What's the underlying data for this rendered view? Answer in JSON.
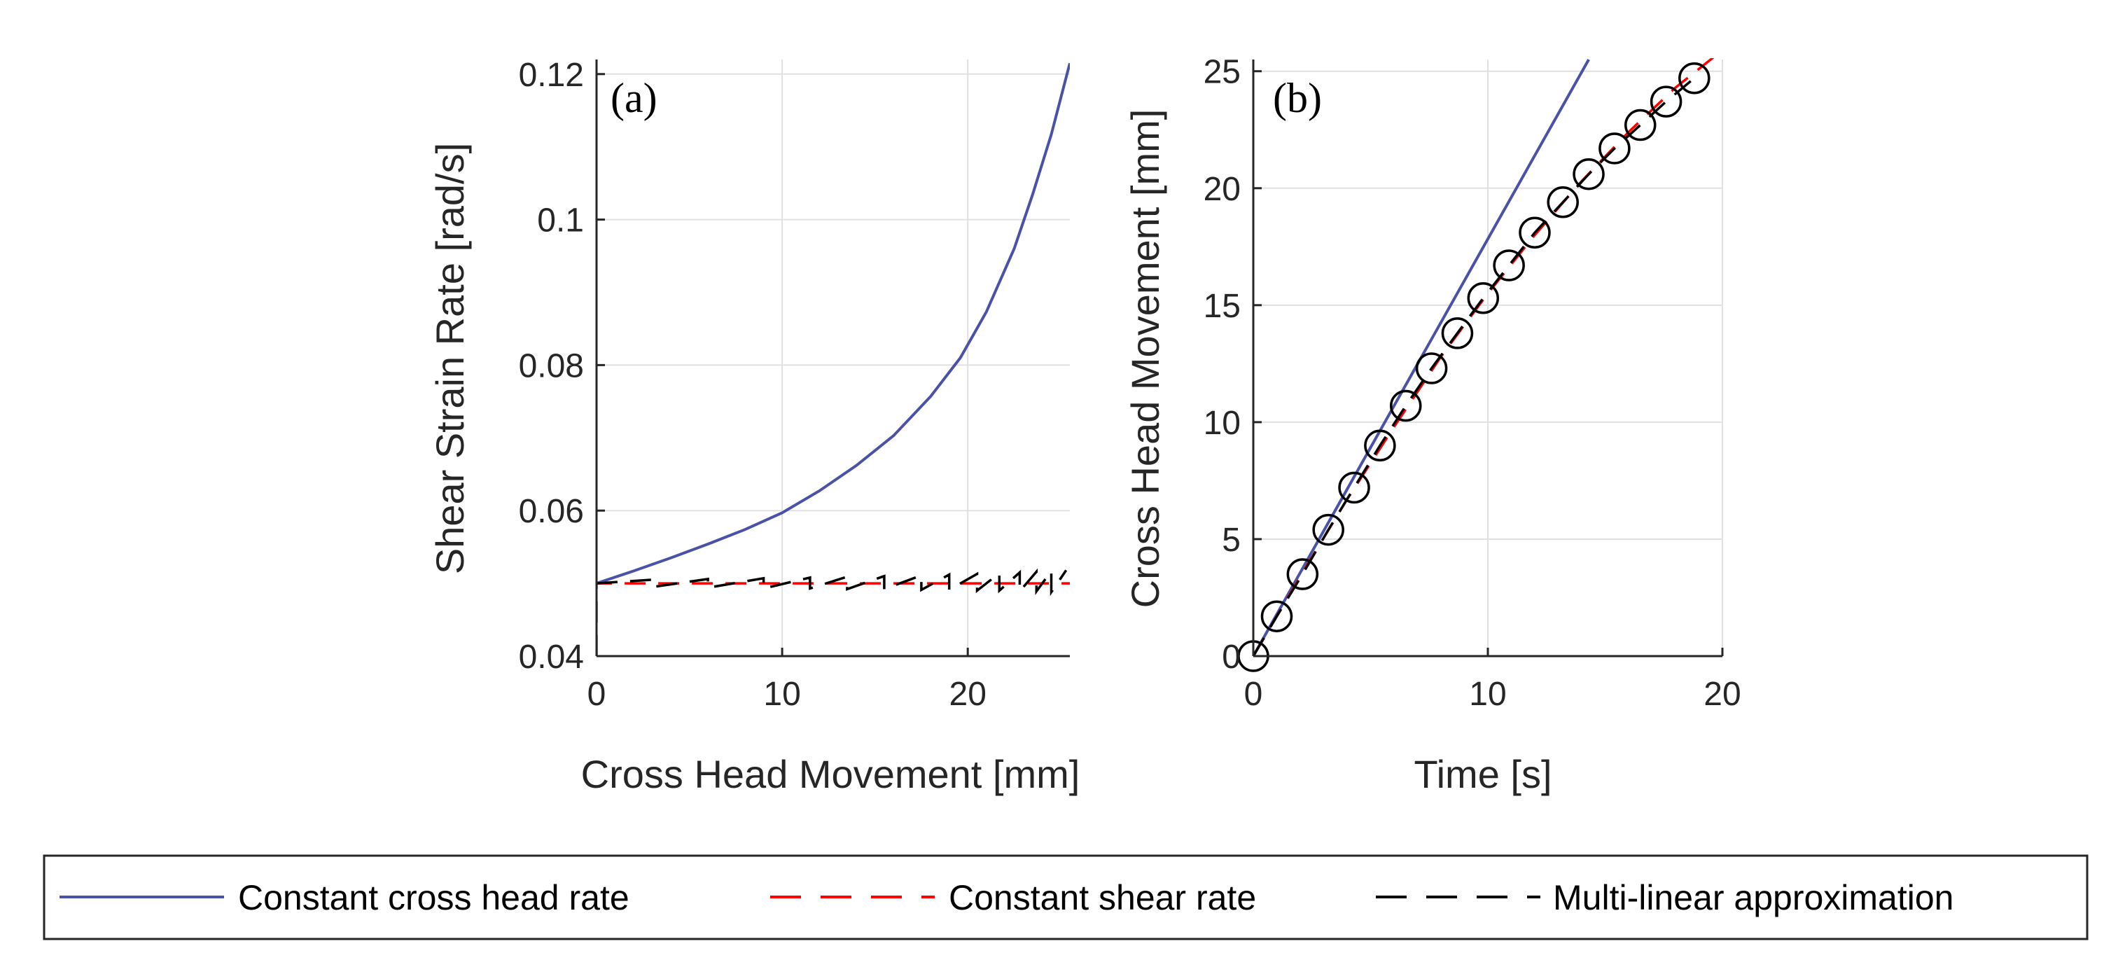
{
  "colors": {
    "constant_cross_head": "#4a52a8",
    "constant_shear": "#ff0000",
    "multi_linear": "#000000",
    "grid": "#e0e0e0",
    "axis": "#262626"
  },
  "chart_data": [
    {
      "type": "line",
      "panel_label": "(a)",
      "xlabel": "Cross Head Movement [mm]",
      "ylabel": "Shear Strain Rate [rad/s]",
      "xlim": [
        0,
        25.5
      ],
      "ylim": [
        0.04,
        0.122
      ],
      "xticks": [
        0,
        10,
        20
      ],
      "xtick_labels": [
        "0",
        "10",
        "20"
      ],
      "yticks": [
        0.04,
        0.06,
        0.08,
        0.1,
        0.12
      ],
      "ytick_labels": [
        "0.04",
        "0.06",
        "0.08",
        "0.1",
        "0.12"
      ],
      "grid": true,
      "series": [
        {
          "name": "Constant cross head rate",
          "style": "solid",
          "x": [
            0,
            2,
            4,
            6,
            8,
            10,
            12,
            14,
            16,
            18,
            19.6,
            21,
            22.5,
            23.5,
            24.5,
            25.5
          ],
          "y": [
            0.05,
            0.0517,
            0.0535,
            0.0554,
            0.0574,
            0.0597,
            0.0627,
            0.0662,
            0.0703,
            0.0757,
            0.081,
            0.0873,
            0.096,
            0.1035,
            0.1117,
            0.1215
          ]
        },
        {
          "name": "Constant shear rate",
          "style": "dashed",
          "x": [
            0,
            0,
            25.5
          ],
          "y": [
            0.04,
            0.05,
            0.05
          ]
        },
        {
          "name": "Multi-linear approximation",
          "style": "dashed",
          "x": [
            0,
            3,
            3,
            6,
            6,
            9,
            9,
            11.5,
            11.5,
            13.5,
            13.5,
            15.5,
            15.5,
            17.5,
            17.5,
            19,
            19,
            20.5,
            20.5,
            21.7,
            21.7,
            22.8,
            22.8,
            23.7,
            23.7,
            24.5,
            24.5,
            25.3
          ],
          "y": [
            0.05,
            0.0505,
            0.0495,
            0.0506,
            0.0494,
            0.0507,
            0.0493,
            0.0508,
            0.0493,
            0.0509,
            0.0492,
            0.051,
            0.0492,
            0.0511,
            0.0491,
            0.0512,
            0.0491,
            0.0513,
            0.049,
            0.0514,
            0.049,
            0.0515,
            0.0489,
            0.0516,
            0.0489,
            0.0517,
            0.0488,
            0.0518
          ]
        }
      ]
    },
    {
      "type": "line",
      "panel_label": "(b)",
      "xlabel": "Time [s]",
      "ylabel": "Cross Head Movement [mm]",
      "xlim": [
        0,
        20
      ],
      "ylim": [
        0,
        25.5
      ],
      "xticks": [
        0,
        10,
        20
      ],
      "xtick_labels": [
        "0",
        "10",
        "20"
      ],
      "yticks": [
        0,
        5,
        10,
        15,
        20,
        25
      ],
      "ytick_labels": [
        "0",
        "5",
        "10",
        "15",
        "20",
        "25"
      ],
      "grid": true,
      "series": [
        {
          "name": "Constant cross head rate",
          "style": "solid",
          "x": [
            0,
            14.3
          ],
          "y": [
            0,
            25.5
          ]
        },
        {
          "name": "Constant shear rate",
          "style": "dashed",
          "x": [
            0,
            2,
            4,
            6,
            8,
            10,
            12,
            14,
            16,
            18,
            20
          ],
          "y": [
            0,
            3.4,
            6.7,
            9.8,
            12.8,
            15.5,
            18.0,
            20.3,
            22.4,
            24.3,
            25.9
          ]
        },
        {
          "name": "Multi-linear approximation",
          "style": "dashed-markers",
          "x": [
            0,
            1.0,
            2.1,
            3.2,
            4.3,
            5.4,
            6.5,
            7.6,
            8.7,
            9.8,
            10.9,
            12.0,
            13.2,
            14.3,
            15.4,
            16.5,
            17.6,
            18.8
          ],
          "y": [
            0,
            1.7,
            3.5,
            5.4,
            7.2,
            9.0,
            10.7,
            12.3,
            13.8,
            15.3,
            16.7,
            18.1,
            19.4,
            20.6,
            21.7,
            22.7,
            23.7,
            24.7
          ]
        }
      ]
    }
  ],
  "legend": {
    "items": [
      {
        "label": "Constant cross head rate",
        "style": "solid"
      },
      {
        "label": "Constant shear rate",
        "style": "dashed"
      },
      {
        "label": "Multi-linear approximation",
        "style": "dashed"
      }
    ]
  }
}
